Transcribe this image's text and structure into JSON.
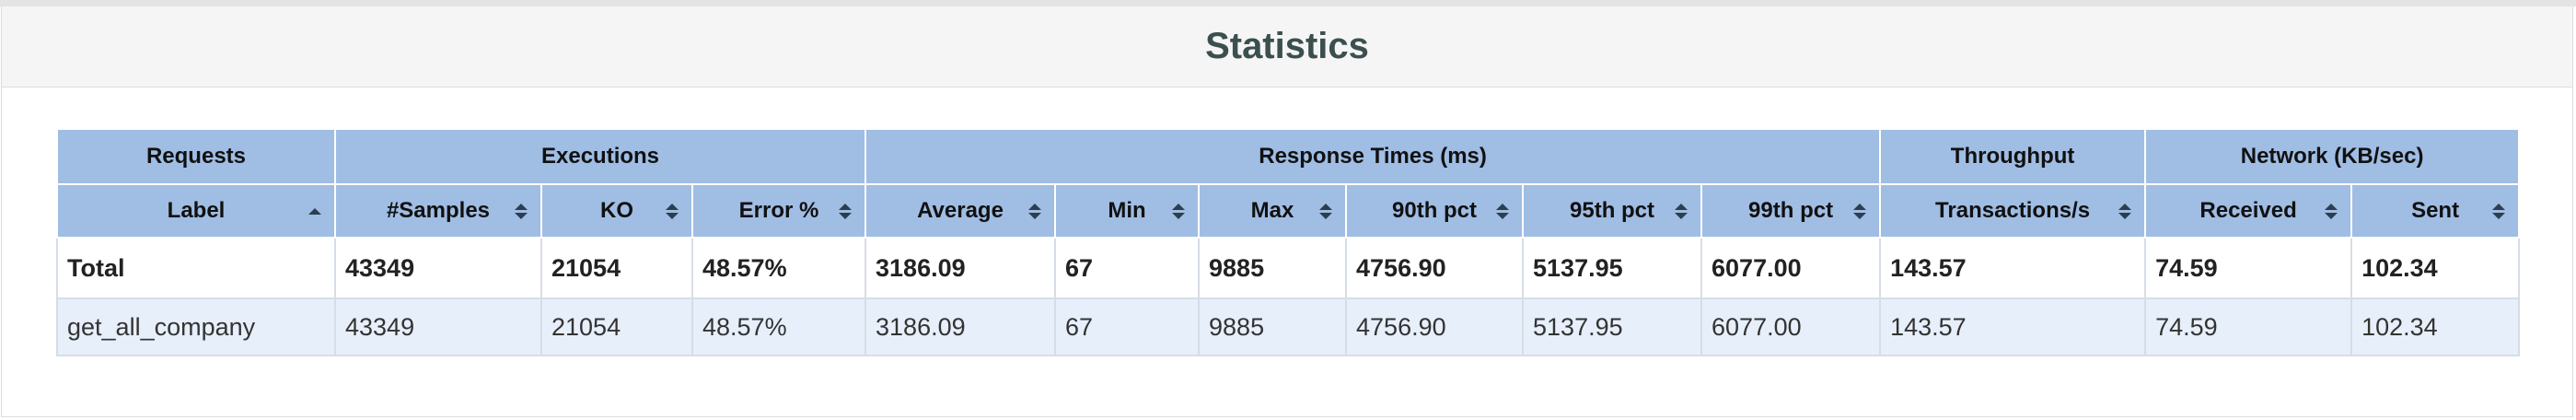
{
  "page_title": "Statistics",
  "header_groups": [
    {
      "label": "Requests",
      "span": 1
    },
    {
      "label": "Executions",
      "span": 3
    },
    {
      "label": "Response Times (ms)",
      "span": 6
    },
    {
      "label": "Throughput",
      "span": 1
    },
    {
      "label": "Network (KB/sec)",
      "span": 2
    }
  ],
  "columns": [
    {
      "label": "Label",
      "sort": "ascending"
    },
    {
      "label": "#Samples",
      "sort": "both"
    },
    {
      "label": "KO",
      "sort": "both"
    },
    {
      "label": "Error %",
      "sort": "both"
    },
    {
      "label": "Average",
      "sort": "both"
    },
    {
      "label": "Min",
      "sort": "both"
    },
    {
      "label": "Max",
      "sort": "both"
    },
    {
      "label": "90th pct",
      "sort": "both"
    },
    {
      "label": "95th pct",
      "sort": "both"
    },
    {
      "label": "99th pct",
      "sort": "both"
    },
    {
      "label": "Transactions/s",
      "sort": "both"
    },
    {
      "label": "Received",
      "sort": "both"
    },
    {
      "label": "Sent",
      "sort": "both"
    }
  ],
  "total_row": [
    "Total",
    "43349",
    "21054",
    "48.57%",
    "3186.09",
    "67",
    "9885",
    "4756.90",
    "5137.95",
    "6077.00",
    "143.57",
    "74.59",
    "102.34"
  ],
  "rows": [
    [
      "get_all_company",
      "43349",
      "21054",
      "48.57%",
      "3186.09",
      "67",
      "9885",
      "4756.90",
      "5137.95",
      "6077.00",
      "143.57",
      "74.59",
      "102.34"
    ]
  ],
  "colors": {
    "header_bg": "#a0bde4",
    "row_bg": "#e7effa",
    "title_color": "#3c4f4f",
    "panel_heading_bg": "#f5f5f5"
  }
}
